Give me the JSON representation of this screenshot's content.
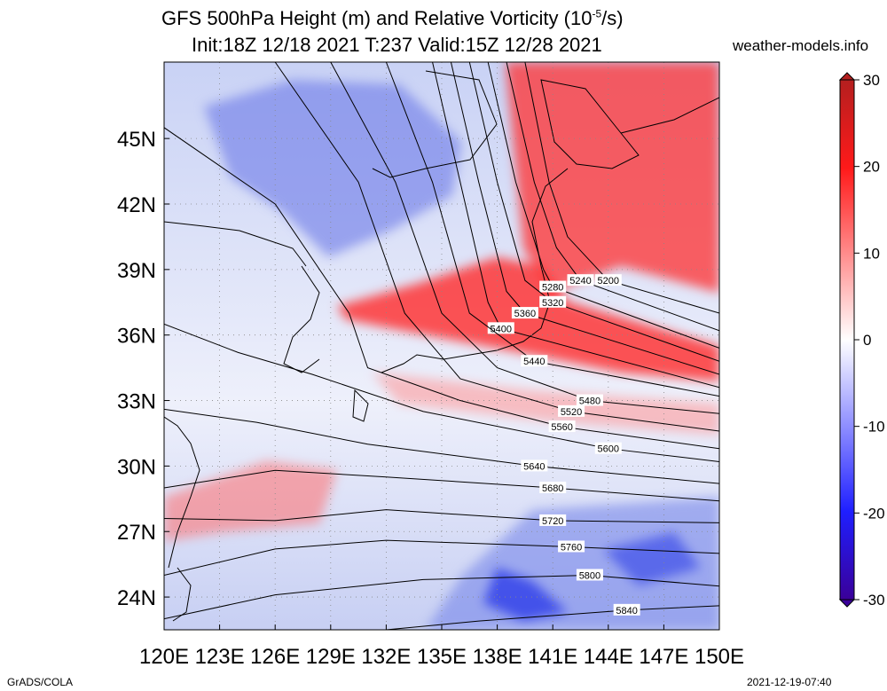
{
  "title": {
    "line1": "GFS 500hPa Height (m) and Relative Vorticity (10",
    "line1_sup": "-5",
    "line1_end": "/s)",
    "line2": "Init:18Z 12/18 2021 T:237 Valid:15Z 12/28 2021"
  },
  "source": "weather-models.info",
  "footer_left": "GrADS/COLA",
  "footer_right": "2021-12-19-07:40",
  "chart_data": {
    "type": "heatmap",
    "projection": "lat-lon",
    "xlim": [
      120,
      150
    ],
    "ylim": [
      22.5,
      48.5
    ],
    "x_ticks": [
      120,
      123,
      126,
      129,
      132,
      135,
      138,
      141,
      144,
      147,
      150
    ],
    "x_tick_labels": [
      "120E",
      "123E",
      "126E",
      "129E",
      "132E",
      "135E",
      "138E",
      "141E",
      "144E",
      "147E",
      "150E"
    ],
    "y_ticks": [
      24,
      27,
      30,
      33,
      36,
      39,
      42,
      45
    ],
    "y_tick_labels": [
      "24N",
      "27N",
      "30N",
      "33N",
      "36N",
      "39N",
      "42N",
      "45N"
    ],
    "grid": true,
    "colorbar": {
      "min": -30,
      "max": 30,
      "ticks": [
        30,
        20,
        10,
        0,
        -10,
        -20,
        -30
      ],
      "tick_labels": [
        "30",
        "20",
        "10",
        "0",
        "-10",
        "-20",
        "-30"
      ],
      "colors": {
        "neg_max": "#3a0099",
        "neg": "#2b2bff",
        "zero": "#ffffff",
        "pos": "#ff1a1a",
        "pos_max": "#b41f1f"
      }
    },
    "height_contours_m": [
      {
        "value": 5200,
        "label": "5200",
        "points": [
          [
            139.5,
            48.5
          ],
          [
            140.8,
            43
          ],
          [
            141.8,
            40.5
          ],
          [
            144,
            38.5
          ],
          [
            150,
            37
          ]
        ]
      },
      {
        "value": 5240,
        "label": "5240",
        "points": [
          [
            138.5,
            48.5
          ],
          [
            140,
            43
          ],
          [
            141.2,
            40
          ],
          [
            142.5,
            38.5
          ],
          [
            150,
            36.2
          ]
        ]
      },
      {
        "value": 5280,
        "label": "5280",
        "points": [
          [
            137.5,
            48.5
          ],
          [
            139,
            43
          ],
          [
            140.5,
            39
          ],
          [
            141,
            38.2
          ],
          [
            150,
            35.4
          ]
        ]
      },
      {
        "value": 5320,
        "label": "5320",
        "points": [
          [
            136.5,
            48.5
          ],
          [
            138,
            43
          ],
          [
            139.5,
            38.5
          ],
          [
            141,
            37.5
          ],
          [
            150,
            34.8
          ]
        ]
      },
      {
        "value": 5360,
        "label": "5360",
        "points": [
          [
            135.5,
            48.5
          ],
          [
            137,
            43
          ],
          [
            138.5,
            38
          ],
          [
            139.5,
            37
          ],
          [
            150,
            34.2
          ]
        ]
      },
      {
        "value": 5400,
        "label": "5400",
        "points": [
          [
            134.5,
            48.5
          ],
          [
            136,
            43
          ],
          [
            137.5,
            37.5
          ],
          [
            138.2,
            36.3
          ],
          [
            150,
            33.6
          ]
        ]
      },
      {
        "value": 5440,
        "label": "5440",
        "points": [
          [
            132,
            48.5
          ],
          [
            134.5,
            43
          ],
          [
            136.5,
            37
          ],
          [
            140,
            34.8
          ],
          [
            150,
            33.2
          ]
        ]
      },
      {
        "value": 5480,
        "label": "5480",
        "points": [
          [
            129,
            48.5
          ],
          [
            132.5,
            43
          ],
          [
            135,
            37
          ],
          [
            138,
            34.5
          ],
          [
            143,
            33
          ],
          [
            150,
            32.4
          ]
        ]
      },
      {
        "value": 5520,
        "label": "5520",
        "points": [
          [
            126,
            48.5
          ],
          [
            130.5,
            43
          ],
          [
            133,
            37
          ],
          [
            136,
            34
          ],
          [
            142,
            32.5
          ],
          [
            150,
            31.6
          ]
        ]
      },
      {
        "value": 5560,
        "label": "5560",
        "points": [
          [
            120,
            45.5
          ],
          [
            126,
            42
          ],
          [
            130,
            37
          ],
          [
            131,
            34.5
          ],
          [
            136,
            33
          ],
          [
            141.5,
            31.8
          ],
          [
            150,
            30.8
          ]
        ]
      },
      {
        "value": 5600,
        "label": "5600",
        "points": [
          [
            120,
            36.5
          ],
          [
            124,
            35.2
          ],
          [
            128,
            34.2
          ],
          [
            134,
            32.5
          ],
          [
            144,
            30.8
          ],
          [
            150,
            30.2
          ]
        ]
      },
      {
        "value": 5640,
        "label": "5640",
        "points": [
          [
            120,
            32.6
          ],
          [
            125,
            32
          ],
          [
            131,
            31
          ],
          [
            140,
            30
          ],
          [
            150,
            29.2
          ]
        ]
      },
      {
        "value": 5680,
        "label": "5680",
        "points": [
          [
            120,
            29
          ],
          [
            126,
            29.8
          ],
          [
            132,
            29.5
          ],
          [
            141,
            29
          ],
          [
            150,
            28.4
          ]
        ]
      },
      {
        "value": 5720,
        "label": "5720",
        "points": [
          [
            120,
            27.6
          ],
          [
            126,
            27.5
          ],
          [
            132,
            28
          ],
          [
            141,
            27.5
          ],
          [
            150,
            27.4
          ]
        ]
      },
      {
        "value": 5760,
        "label": "5760",
        "points": [
          [
            120,
            25
          ],
          [
            126,
            26.2
          ],
          [
            132,
            26.6
          ],
          [
            142,
            26.3
          ],
          [
            150,
            26
          ]
        ]
      },
      {
        "value": 5800,
        "label": "5800",
        "points": [
          [
            120,
            23
          ],
          [
            126,
            24.1
          ],
          [
            134,
            24.8
          ],
          [
            143,
            25
          ],
          [
            150,
            24.5
          ]
        ]
      },
      {
        "value": 5840,
        "label": "5840",
        "points": [
          [
            132,
            22.5
          ],
          [
            137,
            22.9
          ],
          [
            145,
            23.4
          ],
          [
            150,
            23.6
          ]
        ]
      }
    ]
  }
}
